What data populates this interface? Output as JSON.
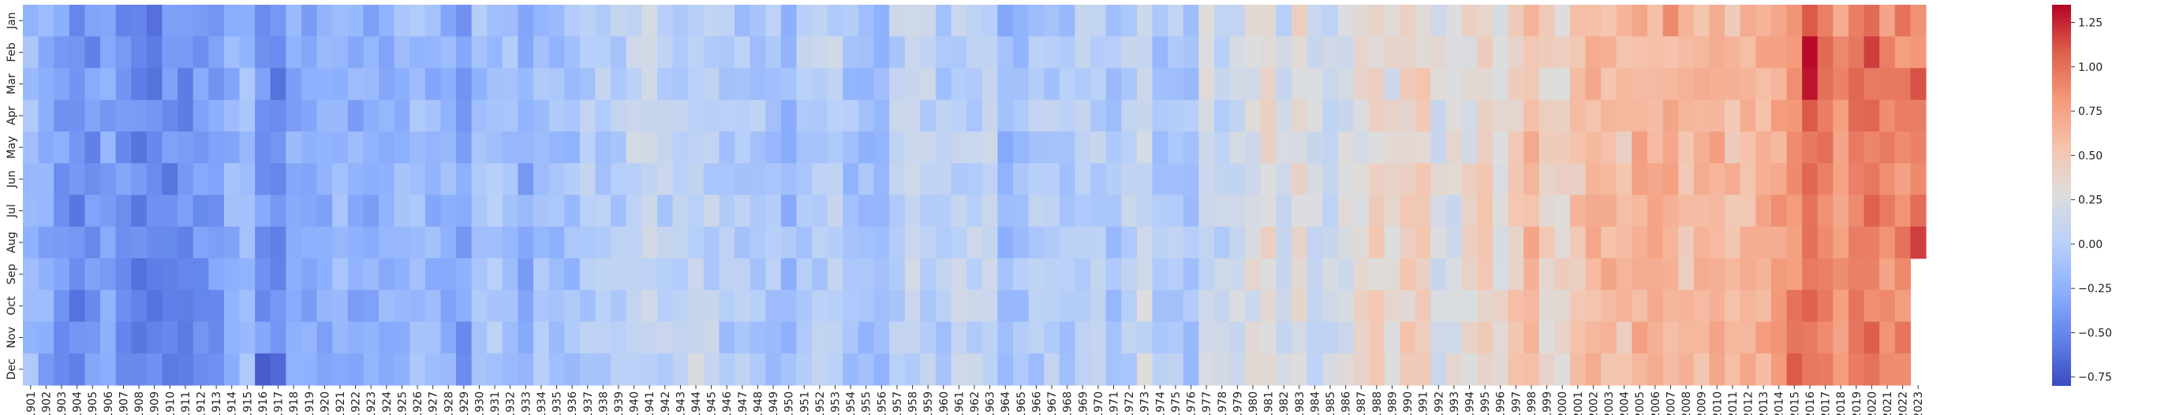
{
  "chart_data": {
    "type": "heatmap",
    "title": "",
    "xlabel": "",
    "ylabel": "",
    "x_first_year": 1901,
    "x_last_year": 2023,
    "y_categories": [
      "Jan",
      "Feb",
      "Mar",
      "Apr",
      "May",
      "Jun",
      "Jul",
      "Aug",
      "Sep",
      "Oct",
      "Nov",
      "Dec"
    ],
    "colormap": "coolwarm",
    "color_range": [
      -0.8,
      1.35
    ],
    "colorbar_ticks": [
      -0.75,
      -0.5,
      -0.25,
      0.0,
      0.25,
      0.5,
      0.75,
      1.0,
      1.25
    ],
    "colorbar_tick_labels": [
      "−0.75",
      "−0.50",
      "−0.25",
      "0.00",
      "0.25",
      "0.50",
      "0.75",
      "1.00",
      "1.25"
    ],
    "missing_cells": [
      {
        "year": 2023,
        "months": [
          "Sep",
          "Oct",
          "Nov",
          "Dec"
        ]
      }
    ],
    "highlights": [
      {
        "year": 1909,
        "month": "Jan",
        "value": -0.62
      },
      {
        "year": 1916,
        "month": "Dec",
        "value": -0.72
      },
      {
        "year": 1917,
        "month": "Dec",
        "value": -0.65
      },
      {
        "year": 2007,
        "month": "Jan",
        "value": 0.88
      },
      {
        "year": 2016,
        "month": "Feb",
        "value": 1.33
      },
      {
        "year": 2016,
        "month": "Mar",
        "value": 1.3
      },
      {
        "year": 2020,
        "month": "Feb",
        "value": 1.18
      },
      {
        "year": 2015,
        "month": "Oct",
        "value": 1.0
      },
      {
        "year": 2015,
        "month": "Nov",
        "value": 0.98
      },
      {
        "year": 2015,
        "month": "Dec",
        "value": 1.1
      },
      {
        "year": 2023,
        "month": "Mar",
        "value": 1.12
      },
      {
        "year": 2023,
        "month": "Jul",
        "value": 1.02
      },
      {
        "year": 2023,
        "month": "Aug",
        "value": 1.18
      }
    ],
    "anchors": [
      [
        1901,
        -0.15
      ],
      [
        1902,
        -0.28
      ],
      [
        1903,
        -0.38
      ],
      [
        1904,
        -0.52
      ],
      [
        1905,
        -0.42
      ],
      [
        1906,
        -0.3
      ],
      [
        1907,
        -0.42
      ],
      [
        1908,
        -0.5
      ],
      [
        1909,
        -0.5
      ],
      [
        1910,
        -0.47
      ],
      [
        1911,
        -0.48
      ],
      [
        1912,
        -0.4
      ],
      [
        1913,
        -0.38
      ],
      [
        1914,
        -0.22
      ],
      [
        1915,
        -0.15
      ],
      [
        1916,
        -0.38
      ],
      [
        1917,
        -0.5
      ],
      [
        1918,
        -0.3
      ],
      [
        1919,
        -0.28
      ],
      [
        1920,
        -0.27
      ],
      [
        1921,
        -0.18
      ],
      [
        1922,
        -0.28
      ],
      [
        1923,
        -0.26
      ],
      [
        1924,
        -0.28
      ],
      [
        1925,
        -0.2
      ],
      [
        1926,
        -0.1
      ],
      [
        1927,
        -0.22
      ],
      [
        1928,
        -0.22
      ],
      [
        1929,
        -0.38
      ],
      [
        1930,
        -0.12
      ],
      [
        1931,
        -0.08
      ],
      [
        1932,
        -0.12
      ],
      [
        1933,
        -0.28
      ],
      [
        1934,
        -0.12
      ],
      [
        1935,
        -0.16
      ],
      [
        1936,
        -0.14
      ],
      [
        1937,
        -0.02
      ],
      [
        1938,
        -0.02
      ],
      [
        1939,
        -0.02
      ],
      [
        1940,
        0.08
      ],
      [
        1941,
        0.12
      ],
      [
        1942,
        0.02
      ],
      [
        1943,
        0.04
      ],
      [
        1944,
        0.12
      ],
      [
        1945,
        0.04
      ],
      [
        1946,
        -0.05
      ],
      [
        1947,
        -0.05
      ],
      [
        1948,
        -0.05
      ],
      [
        1949,
        -0.08
      ],
      [
        1950,
        -0.17
      ],
      [
        1951,
        -0.02
      ],
      [
        1952,
        0.0
      ],
      [
        1953,
        0.08
      ],
      [
        1954,
        -0.12
      ],
      [
        1955,
        -0.15
      ],
      [
        1956,
        -0.2
      ],
      [
        1957,
        0.03
      ],
      [
        1958,
        0.08
      ],
      [
        1959,
        0.04
      ],
      [
        1960,
        -0.03
      ],
      [
        1961,
        0.06
      ],
      [
        1962,
        0.04
      ],
      [
        1963,
        0.06
      ],
      [
        1964,
        -0.22
      ],
      [
        1965,
        -0.12
      ],
      [
        1966,
        -0.04
      ],
      [
        1967,
        -0.03
      ],
      [
        1968,
        -0.07
      ],
      [
        1969,
        0.06
      ],
      [
        1970,
        0.02
      ],
      [
        1971,
        -0.08
      ],
      [
        1972,
        0.02
      ],
      [
        1973,
        0.16
      ],
      [
        1974,
        -0.08
      ],
      [
        1975,
        -0.02
      ],
      [
        1976,
        -0.1
      ],
      [
        1977,
        0.18
      ],
      [
        1978,
        0.07
      ],
      [
        1979,
        0.16
      ],
      [
        1980,
        0.26
      ],
      [
        1981,
        0.31
      ],
      [
        1982,
        0.12
      ],
      [
        1983,
        0.32
      ],
      [
        1984,
        0.16
      ],
      [
        1985,
        0.12
      ],
      [
        1986,
        0.19
      ],
      [
        1987,
        0.33
      ],
      [
        1988,
        0.4
      ],
      [
        1989,
        0.28
      ],
      [
        1990,
        0.45
      ],
      [
        1991,
        0.42
      ],
      [
        1992,
        0.23
      ],
      [
        1993,
        0.24
      ],
      [
        1994,
        0.32
      ],
      [
        1995,
        0.46
      ],
      [
        1996,
        0.34
      ],
      [
        1997,
        0.48
      ],
      [
        1998,
        0.62
      ],
      [
        1999,
        0.4
      ],
      [
        2000,
        0.4
      ],
      [
        2001,
        0.54
      ],
      [
        2002,
        0.63
      ],
      [
        2003,
        0.62
      ],
      [
        2004,
        0.54
      ],
      [
        2005,
        0.68
      ],
      [
        2006,
        0.64
      ],
      [
        2007,
        0.66
      ],
      [
        2008,
        0.54
      ],
      [
        2009,
        0.64
      ],
      [
        2010,
        0.72
      ],
      [
        2011,
        0.58
      ],
      [
        2012,
        0.62
      ],
      [
        2013,
        0.68
      ],
      [
        2014,
        0.74
      ],
      [
        2015,
        0.9
      ],
      [
        2016,
        1.0
      ],
      [
        2017,
        0.92
      ],
      [
        2018,
        0.82
      ],
      [
        2019,
        0.95
      ],
      [
        2020,
        0.98
      ],
      [
        2021,
        0.84
      ],
      [
        2022,
        0.89
      ],
      [
        2023,
        0.95
      ]
    ]
  }
}
